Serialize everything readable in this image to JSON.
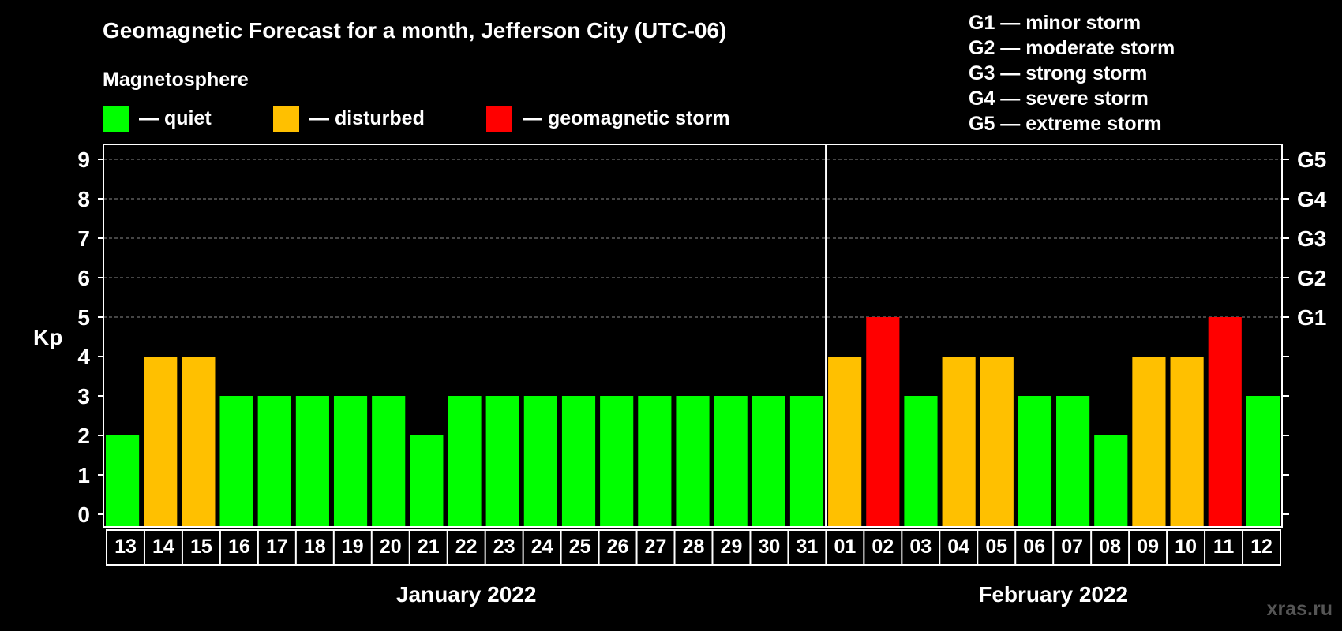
{
  "colors": {
    "quiet": "#00ff00",
    "disturbed": "#ffc000",
    "storm": "#ff0000",
    "background": "#000000",
    "text": "#ffffff"
  },
  "header": {
    "title": "Geomagnetic Forecast for a month, Jefferson City (UTC-06)",
    "subtitle": "Magnetosphere"
  },
  "legend": [
    {
      "label": "— quiet",
      "status": "quiet"
    },
    {
      "label": "— disturbed",
      "status": "disturbed"
    },
    {
      "label": "— geomagnetic storm",
      "status": "storm"
    }
  ],
  "storm_scale": [
    "G1 — minor storm",
    "G2 — moderate storm",
    "G3 — strong storm",
    "G4 — severe storm",
    "G5 — extreme storm"
  ],
  "watermark": "xras.ru",
  "chart_data": {
    "type": "bar",
    "title": "Geomagnetic Forecast for a month, Jefferson City (UTC-06)",
    "ylabel": "Kp",
    "ylim": [
      0,
      9
    ],
    "yticks": [
      "0",
      "1",
      "2",
      "3",
      "4",
      "5",
      "6",
      "7",
      "8",
      "9"
    ],
    "right_ticks": [
      {
        "kp": 5,
        "label": "G1"
      },
      {
        "kp": 6,
        "label": "G2"
      },
      {
        "kp": 7,
        "label": "G3"
      },
      {
        "kp": 8,
        "label": "G4"
      },
      {
        "kp": 9,
        "label": "G5"
      }
    ],
    "categories": [
      "13",
      "14",
      "15",
      "16",
      "17",
      "18",
      "19",
      "20",
      "21",
      "22",
      "23",
      "24",
      "25",
      "26",
      "27",
      "28",
      "29",
      "30",
      "31",
      "01",
      "02",
      "03",
      "04",
      "05",
      "06",
      "07",
      "08",
      "09",
      "10",
      "11",
      "12"
    ],
    "values": [
      2,
      4,
      4,
      3,
      3,
      3,
      3,
      3,
      2,
      3,
      3,
      3,
      3,
      3,
      3,
      3,
      3,
      3,
      3,
      4,
      5,
      3,
      4,
      4,
      3,
      3,
      2,
      4,
      4,
      5,
      3
    ],
    "status": [
      "quiet",
      "disturbed",
      "disturbed",
      "quiet",
      "quiet",
      "quiet",
      "quiet",
      "quiet",
      "quiet",
      "quiet",
      "quiet",
      "quiet",
      "quiet",
      "quiet",
      "quiet",
      "quiet",
      "quiet",
      "quiet",
      "quiet",
      "disturbed",
      "storm",
      "quiet",
      "disturbed",
      "disturbed",
      "quiet",
      "quiet",
      "quiet",
      "disturbed",
      "disturbed",
      "storm",
      "quiet"
    ],
    "months": [
      {
        "label": "January 2022",
        "start_index": 0,
        "count": 19
      },
      {
        "label": "February 2022",
        "start_index": 19,
        "count": 12
      }
    ]
  }
}
